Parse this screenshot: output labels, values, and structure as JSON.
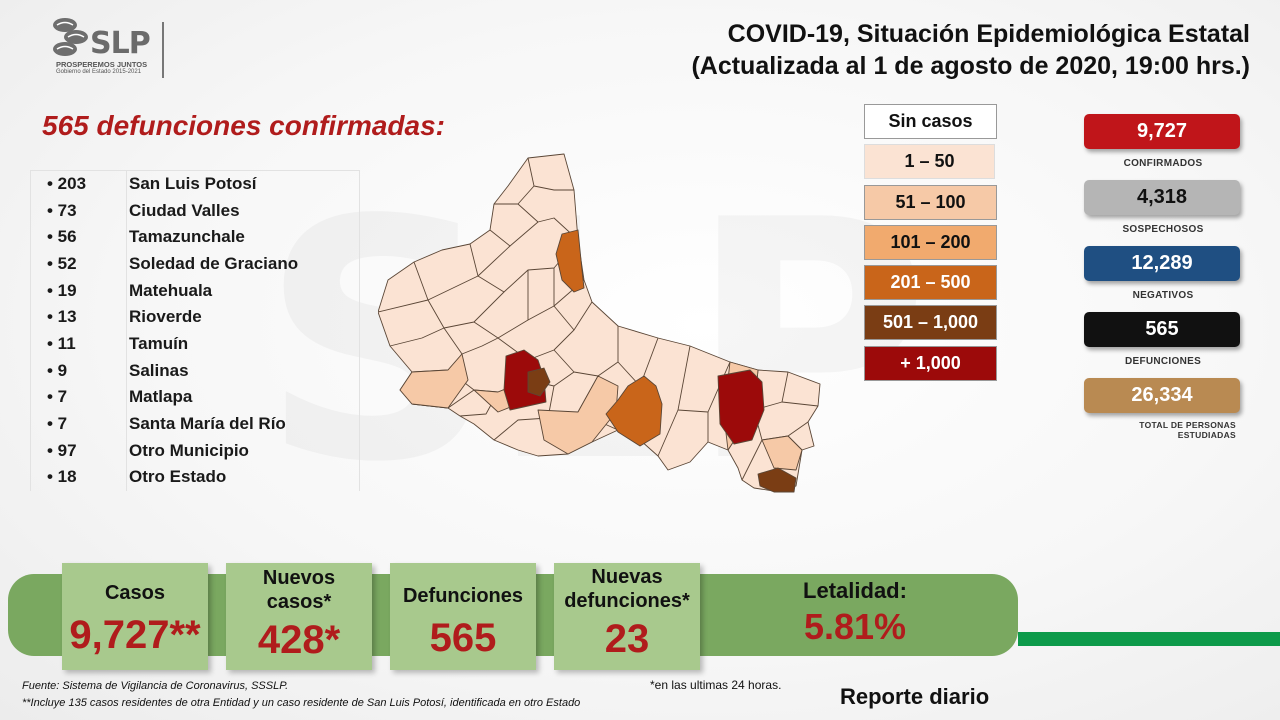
{
  "logo": {
    "brand": "SLP",
    "tagline": "PROSPEREMOS JUNTOS",
    "subtitle": "Gobierno del Estado 2015-2021"
  },
  "header": {
    "title_line1": "COVID-19, Situación Epidemiológica Estatal",
    "title_line2": "(Actualizada al 1 de agosto de 2020, 19:00 hrs.)"
  },
  "deaths_heading": "565 defunciones confirmadas:",
  "municipalities": [
    {
      "count": "• 203",
      "name": "San Luis Potosí"
    },
    {
      "count": "• 73",
      "name": "Ciudad Valles"
    },
    {
      "count": "• 56",
      "name": "Tamazunchale"
    },
    {
      "count": "• 52",
      "name": "Soledad de Graciano"
    },
    {
      "count": "• 19",
      "name": "Matehuala"
    },
    {
      "count": "• 13",
      "name": "Rioverde"
    },
    {
      "count": "• 11",
      "name": "Tamuín"
    },
    {
      "count": "• 9",
      "name": "Salinas"
    },
    {
      "count": "• 7",
      "name": "Matlapa"
    },
    {
      "count": "• 7",
      "name": "Santa María del Río"
    },
    {
      "count": "• 97",
      "name": "Otro Municipio"
    },
    {
      "count": "• 18",
      "name": "Otro Estado"
    }
  ],
  "legend": [
    {
      "label": "Sin casos",
      "color": "#ffffff",
      "text_color": "#111111"
    },
    {
      "label": "1 – 50",
      "color": "#fbe3d3",
      "text_color": "#111111"
    },
    {
      "label": "51 – 100",
      "color": "#f6c9a7",
      "text_color": "#111111"
    },
    {
      "label": "101 – 200",
      "color": "#f1aa6e",
      "text_color": "#111111"
    },
    {
      "label": "201 – 500",
      "color": "#c9651a",
      "text_color": "#ffffff"
    },
    {
      "label": "501 – 1,000",
      "color": "#7a3d14",
      "text_color": "#ffffff"
    },
    {
      "label": "+ 1,000",
      "color": "#9c0a0a",
      "text_color": "#ffffff"
    }
  ],
  "stats": [
    {
      "value": "9,727",
      "label": "CONFIRMADOS",
      "color": "#c0151a"
    },
    {
      "value": "4,318",
      "label": "SOSPECHOSOS",
      "color": "#b5b5b5",
      "text_color": "#111111"
    },
    {
      "value": "12,289",
      "label": "NEGATIVOS",
      "color": "#1f4f82"
    },
    {
      "value": "565",
      "label": "DEFUNCIONES",
      "color": "#111111"
    },
    {
      "value": "26,334",
      "label": "TOTAL DE PERSONAS ESTUDIADAS",
      "color": "#b98a52"
    }
  ],
  "cards": {
    "casos": {
      "label": "Casos",
      "value": "9,727**"
    },
    "nuevos": {
      "label": "Nuevos casos*",
      "value": "428*"
    },
    "defunciones": {
      "label": "Defunciones",
      "value": "565"
    },
    "nuevas_def": {
      "label": "Nuevas defunciones*",
      "value": "23"
    },
    "letalidad": {
      "label": "Letalidad:",
      "value": "5.81%"
    }
  },
  "footer": {
    "source": "Fuente: Sistema de Vigilancia de Coronavirus, SSSLP.",
    "note": "**Incluye 135 casos residentes de otra Entidad y un caso residente de San Luis Potosí, identificada en otro Estado",
    "last24": "*en las ultimas 24 horas.",
    "report": "Reporte diario"
  }
}
